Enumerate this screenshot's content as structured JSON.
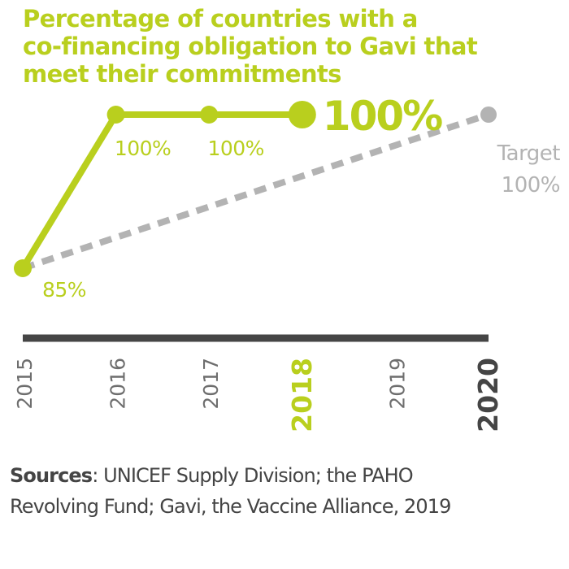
{
  "colors": {
    "accent": "#b9cf1e",
    "target": "#b3b3b3",
    "axis": "#454545",
    "tick_label": "#6e6e6e",
    "text": "#444444"
  },
  "chart_data": {
    "type": "line",
    "title_lines": [
      "Percentage of countries with a",
      "co-financing obligation to Gavi that",
      "meet their commitments"
    ],
    "x": [
      "2015",
      "2016",
      "2017",
      "2018",
      "2019",
      "2020"
    ],
    "highlight_ticks": [
      "2018",
      "2020"
    ],
    "ylim": [
      82,
      103
    ],
    "grid": false,
    "legend": "none",
    "series": [
      {
        "style": "solid",
        "x": [
          "2015",
          "2016",
          "2017",
          "2018"
        ],
        "values": [
          85,
          100,
          100,
          100
        ],
        "data_labels": [
          "85%",
          "100%",
          "100%",
          "100%"
        ]
      },
      {
        "style": "dotted",
        "x": [
          "2015",
          "2020"
        ],
        "values": [
          85,
          100
        ],
        "data_labels": [
          "",
          "Target\n100%"
        ]
      }
    ]
  },
  "sources": {
    "label": "Sources",
    "text_line1": ": UNICEF Supply Division; the PAHO",
    "text_line2": "Revolving Fund; Gavi, the Vaccine Alliance, 2019"
  }
}
